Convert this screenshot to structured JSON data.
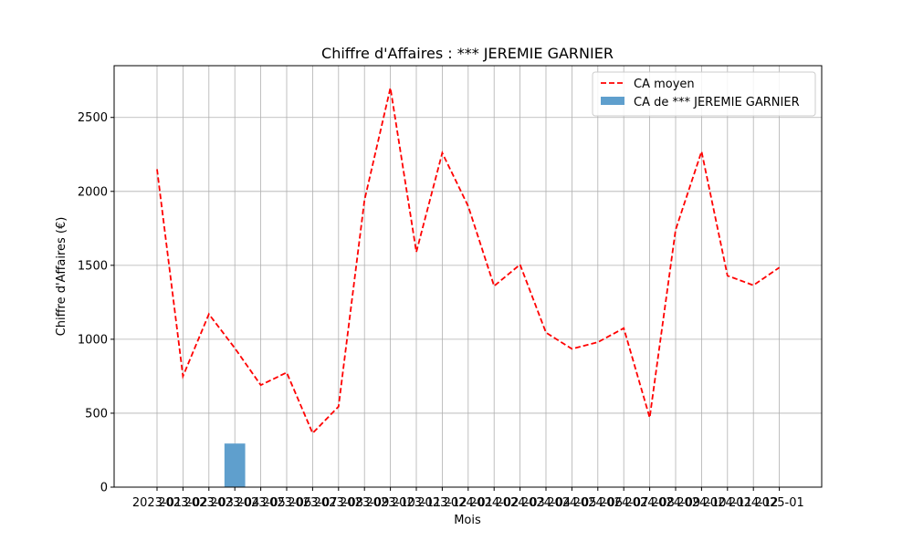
{
  "chart_data": {
    "type": "bar+line",
    "title": "Chiffre d'Affaires : *** JEREMIE GARNIER",
    "xlabel": "Mois",
    "ylabel": "Chiffre d'Affaires (€)",
    "ylim": [
      0,
      2850
    ],
    "yticks": [
      0,
      500,
      1000,
      1500,
      2000,
      2500
    ],
    "grid": true,
    "legend_position": "top-right",
    "categories": [
      "2023-01",
      "2023-02",
      "2023-03",
      "2023-04",
      "2023-05",
      "2023-06",
      "2023-07",
      "2023-08",
      "2023-09",
      "2023-10",
      "2023-11",
      "2023-12",
      "2024-01",
      "2024-02",
      "2024-03",
      "2024-04",
      "2024-05",
      "2024-06",
      "2024-07",
      "2024-08",
      "2024-09",
      "2024-10",
      "2024-11",
      "2024-12",
      "2025-01"
    ],
    "series": [
      {
        "name": "CA moyen",
        "kind": "line",
        "style": "dashed",
        "color": "#ff0000",
        "values": [
          2150,
          750,
          1170,
          940,
          690,
          775,
          365,
          545,
          1940,
          2700,
          1590,
          2260,
          1900,
          1360,
          1505,
          1045,
          935,
          980,
          1075,
          470,
          1740,
          2270,
          1430,
          1365,
          1485
        ]
      },
      {
        "name": "CA de *** JEREMIE GARNIER",
        "kind": "bar",
        "color": "#5f9fcd",
        "values": [
          null,
          null,
          null,
          295,
          null,
          null,
          null,
          null,
          null,
          null,
          null,
          null,
          null,
          null,
          null,
          null,
          null,
          null,
          null,
          null,
          null,
          null,
          null,
          null,
          null
        ]
      }
    ]
  }
}
